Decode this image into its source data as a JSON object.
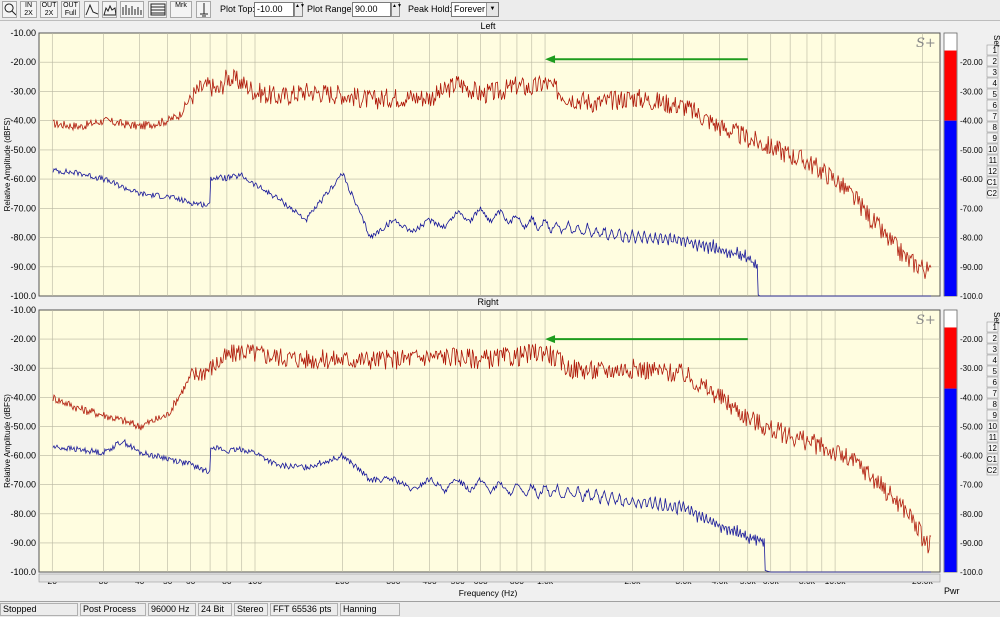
{
  "toolbar": {
    "buttons": [
      {
        "name": "zoom-button",
        "text": "",
        "icon": "magnifier-icon"
      },
      {
        "name": "zoom-in-2x-button",
        "text": "IN 2X",
        "icon": "zoom-in-icon"
      },
      {
        "name": "zoom-out-2x-button",
        "text": "OUT 2X",
        "icon": "zoom-out-icon"
      },
      {
        "name": "zoom-out-full-button",
        "text": "OUT Full",
        "icon": "zoom-out-full-icon"
      },
      {
        "name": "line-view-button",
        "text": "",
        "icon": "line-graph-icon"
      },
      {
        "name": "area-view-button",
        "text": "",
        "icon": "area-graph-icon"
      },
      {
        "name": "bar-view-button",
        "text": "",
        "icon": "bar-graph-icon"
      },
      {
        "name": "table-view-button",
        "text": "",
        "icon": "table-icon"
      },
      {
        "name": "marker-button",
        "text": "Mrk",
        "icon": "marker-icon"
      },
      {
        "name": "cursor-button",
        "text": "",
        "icon": "cursor-icon"
      }
    ],
    "plot_top_label": "Plot Top:",
    "plot_top_value": "-10.00",
    "plot_range_label": "Plot Range:",
    "plot_range_value": "90.00",
    "peak_hold_label": "Peak Hold:",
    "peak_hold_value": "Forever"
  },
  "status": [
    "Stopped",
    "Post Process",
    "96000 Hz",
    "24 Bit",
    "Stereo",
    "FFT 65536 pts",
    "Hanning"
  ],
  "colors": {
    "plot_bg": "#fffde0",
    "grid": "#b8b6a0",
    "trace_peak": "#b01a0a",
    "trace_avg": "#1a1a9a",
    "arrow": "#1e9c1e",
    "meter_red": "#ff0000",
    "meter_blue": "#0000ff"
  },
  "chart_data": [
    {
      "type": "line",
      "title": "Left",
      "ylabel": "Relative Amplitude (dBFS)",
      "xlabel": "Frequency (Hz)",
      "xscale": "log",
      "xlim": [
        18,
        23000
      ],
      "ylim": [
        -100,
        -10
      ],
      "yticks": [
        "-10.00",
        "-20.00",
        "-30.00",
        "-40.00",
        "-50.00",
        "-60.00",
        "-70.00",
        "-80.00",
        "-90.00",
        "-100.0"
      ],
      "series": [
        {
          "style": "peak",
          "x": [
            20,
            25,
            30,
            40,
            50,
            55,
            60,
            65,
            70,
            75,
            80,
            90,
            100,
            120,
            150,
            200,
            250,
            300,
            400,
            450,
            500,
            600,
            700,
            800,
            900,
            1000,
            1200,
            1500,
            2000,
            3000,
            4000,
            5000,
            6000,
            8000,
            10000,
            12000,
            15000,
            18000,
            20000,
            21000
          ],
          "y": [
            -41,
            -42,
            -40,
            -42,
            -40,
            -38,
            -32,
            -29,
            -28,
            -30,
            -25,
            -27,
            -30,
            -32,
            -30,
            -31,
            -33,
            -32,
            -32,
            -30,
            -27,
            -31,
            -30,
            -28,
            -29,
            -27,
            -32,
            -34,
            -32,
            -35,
            -42,
            -46,
            -49,
            -54,
            -60,
            -68,
            -80,
            -88,
            -90,
            -92
          ]
        },
        {
          "style": "average",
          "x": [
            20,
            25,
            30,
            40,
            50,
            60,
            70,
            80,
            90,
            100,
            120,
            150,
            200,
            250,
            300,
            400,
            500,
            600,
            800,
            1000,
            1500,
            2000,
            3000,
            4000,
            5000,
            5500,
            6000,
            8000,
            10000,
            15000,
            20000,
            21000
          ],
          "y": [
            -57,
            -58,
            -60,
            -65,
            -66,
            -68,
            -69,
            -70,
            -70,
            -74,
            -77,
            -82,
            -70,
            -88,
            -86,
            -86,
            -83,
            -82,
            -84,
            -86,
            -88,
            -90,
            -91,
            -94,
            -97,
            -100,
            -100,
            -100,
            -100,
            -100,
            -100,
            -100
          ]
        }
      ],
      "meter": {
        "red_top": -16,
        "blue_top": -40
      },
      "annotation_arrow": {
        "from": [
          5000,
          -20
        ],
        "to": [
          1000,
          -20
        ]
      }
    },
    {
      "type": "line",
      "title": "Right",
      "ylabel": "Relative Amplitude (dBFS)",
      "xlabel": "Frequency (Hz)",
      "xscale": "log",
      "xlim": [
        18,
        23000
      ],
      "ylim": [
        -100,
        -10
      ],
      "yticks": [
        "-10.00",
        "-20.00",
        "-30.00",
        "-40.00",
        "-50.00",
        "-60.00",
        "-70.00",
        "-80.00",
        "-90.00",
        "-100.0"
      ],
      "series": [
        {
          "style": "peak",
          "x": [
            20,
            25,
            30,
            35,
            40,
            50,
            60,
            70,
            80,
            90,
            100,
            120,
            150,
            200,
            300,
            400,
            500,
            600,
            800,
            1000,
            1200,
            1500,
            2000,
            3000,
            4000,
            5000,
            6000,
            8000,
            10000,
            12000,
            15000,
            18000,
            20000,
            21000
          ],
          "y": [
            -40,
            -44,
            -46,
            -48,
            -50,
            -46,
            -33,
            -30,
            -26,
            -24,
            -25,
            -26,
            -27,
            -27,
            -27,
            -26,
            -26,
            -27,
            -26,
            -24,
            -30,
            -31,
            -30,
            -32,
            -40,
            -47,
            -51,
            -55,
            -59,
            -63,
            -72,
            -80,
            -88,
            -91
          ]
        },
        {
          "style": "average",
          "x": [
            20,
            25,
            30,
            35,
            40,
            50,
            60,
            70,
            80,
            90,
            100,
            120,
            150,
            200,
            300,
            400,
            500,
            600,
            800,
            1000,
            1500,
            2000,
            3000,
            4000,
            5000,
            6000,
            8000,
            10000,
            15000,
            20000,
            21000
          ],
          "y": [
            -57,
            -58,
            -59,
            -55,
            -59,
            -61,
            -63,
            -66,
            -69,
            -69,
            -71,
            -74,
            -72,
            -72,
            -80,
            -80,
            -80,
            -80,
            -82,
            -82,
            -84,
            -86,
            -88,
            -94,
            -98,
            -100,
            -100,
            -100,
            -100,
            -100,
            -100
          ]
        }
      ],
      "meter": {
        "red_top": -16,
        "blue_top": -37
      },
      "annotation_arrow": {
        "from": [
          5000,
          -20
        ],
        "to": [
          1000,
          -20
        ]
      }
    }
  ],
  "x_tick_labels": [
    {
      "f": 20,
      "t": "20"
    },
    {
      "f": 30,
      "t": "30"
    },
    {
      "f": 40,
      "t": "40"
    },
    {
      "f": 50,
      "t": "50"
    },
    {
      "f": 60,
      "t": "60"
    },
    {
      "f": 80,
      "t": "80"
    },
    {
      "f": 100,
      "t": "100"
    },
    {
      "f": 200,
      "t": "200"
    },
    {
      "f": 300,
      "t": "300"
    },
    {
      "f": 400,
      "t": "400"
    },
    {
      "f": 500,
      "t": "500"
    },
    {
      "f": 600,
      "t": "600"
    },
    {
      "f": 800,
      "t": "800"
    },
    {
      "f": 1000,
      "t": "1.0k"
    },
    {
      "f": 2000,
      "t": "2.0k"
    },
    {
      "f": 3000,
      "t": "3.0k"
    },
    {
      "f": 4000,
      "t": "4.0k"
    },
    {
      "f": 5000,
      "t": "5.0k"
    },
    {
      "f": 6000,
      "t": "6.0k"
    },
    {
      "f": 8000,
      "t": "8.0k"
    },
    {
      "f": 10000,
      "t": "10.0k"
    },
    {
      "f": 20000,
      "t": "20.0k"
    }
  ],
  "meter_labels": [
    "1",
    "2",
    "3",
    "4",
    "5",
    "6",
    "7",
    "8",
    "9",
    "10",
    "11",
    "12",
    "C1",
    "C2"
  ],
  "meter_header": "Set",
  "meter_footer": "Pwr",
  "logo_text": "S+"
}
